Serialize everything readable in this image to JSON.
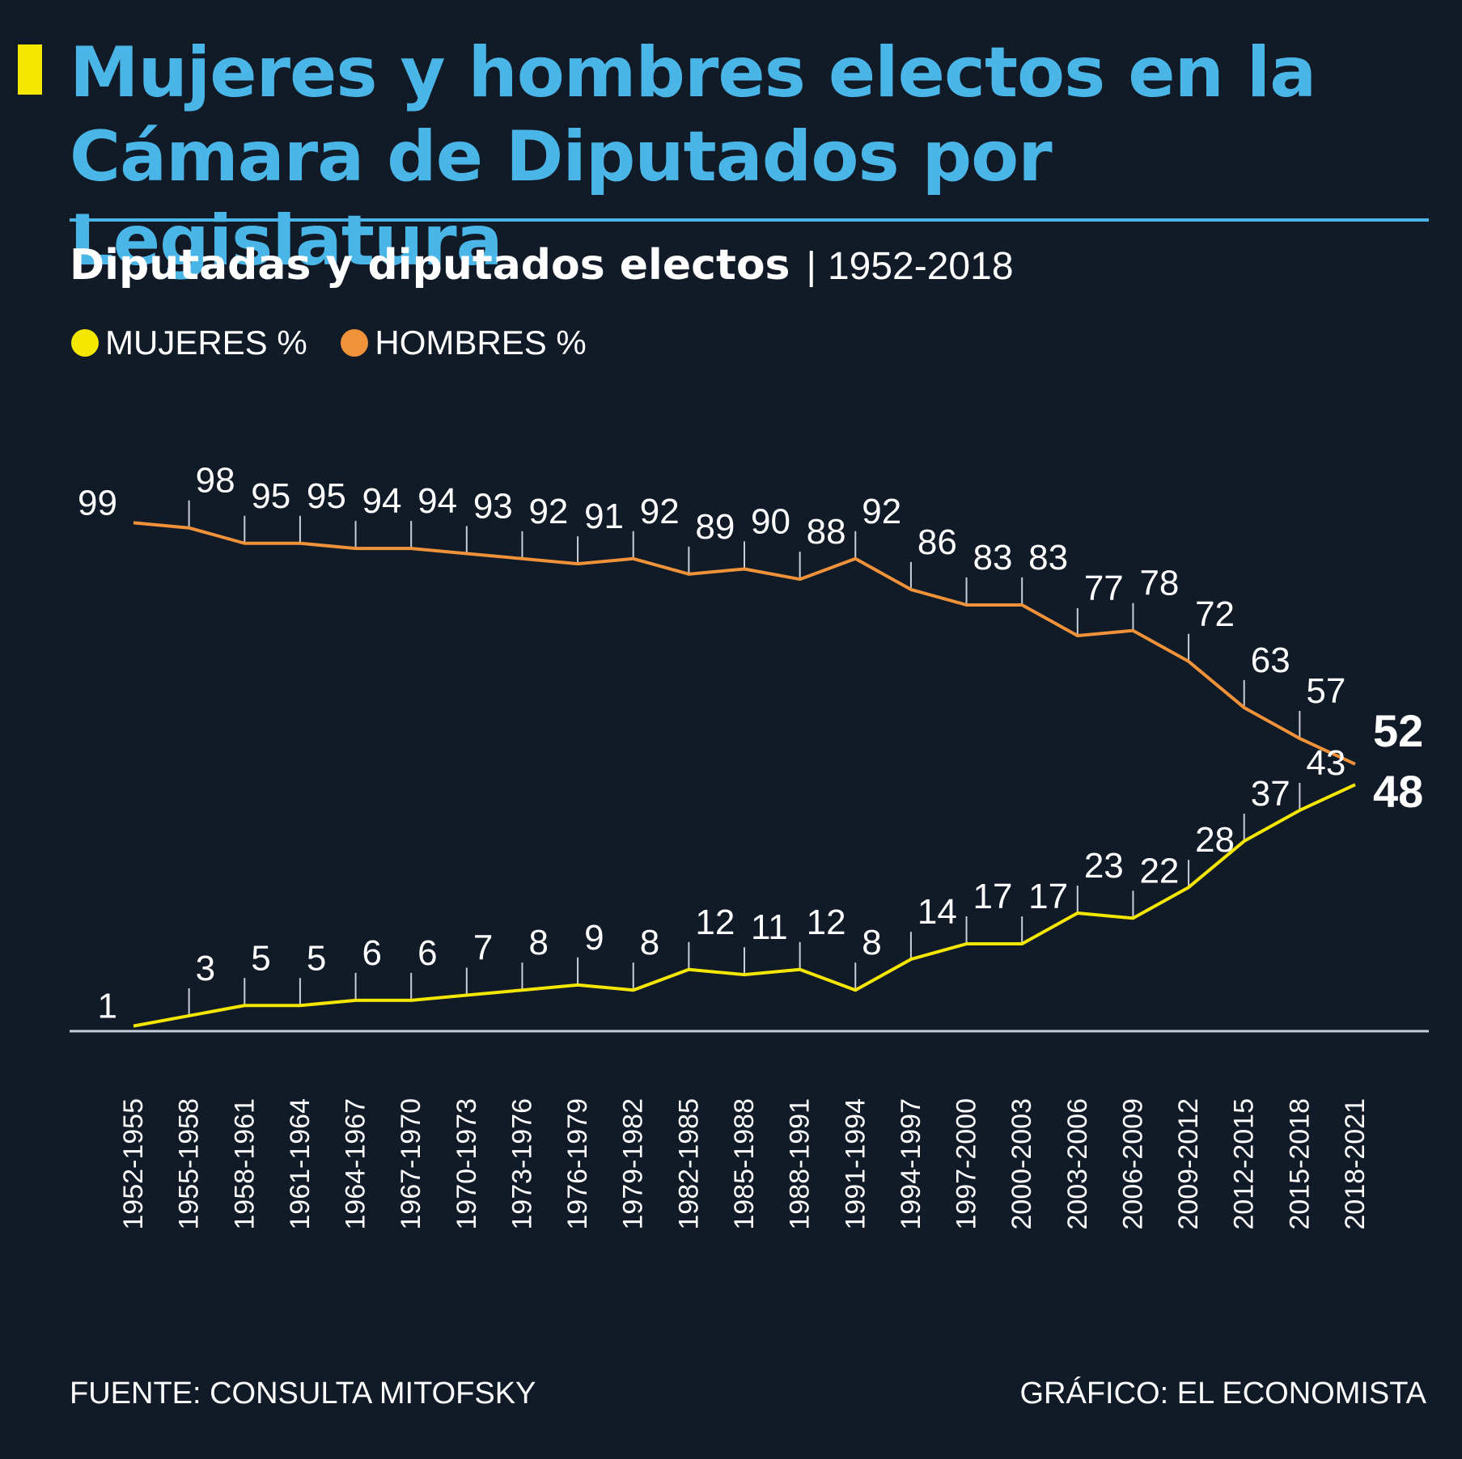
{
  "title": "Mujeres y hombres electos en la Cámara de Diputados por Legislatura",
  "subtitle": "Diputadas y diputados electos",
  "subtitle_separator": "|",
  "subtitle_range": "1952-2018",
  "legend": {
    "women": "MUJERES %",
    "men": "HOMBRES %"
  },
  "colors": {
    "background": "#111a27",
    "title": "#4ab6e8",
    "accent": "#f5e600",
    "women": "#f5e600",
    "men": "#f0923a",
    "axis": "#c9ced6",
    "text": "#ffffff"
  },
  "footer": {
    "source": "FUENTE: CONSULTA MITOFSKY",
    "credit": "GRÁFICO: EL ECONOMISTA"
  },
  "chart_data": {
    "type": "line",
    "ylim": [
      0,
      100
    ],
    "grid": false,
    "legend_position": "top-left",
    "categories": [
      "1952-1955",
      "1955-1958",
      "1958-1961",
      "1961-1964",
      "1964-1967",
      "1967-1970",
      "1970-1973",
      "1973-1976",
      "1976-1979",
      "1979-1982",
      "1982-1985",
      "1985-1988",
      "1988-1991",
      "1991-1994",
      "1994-1997",
      "1997-2000",
      "2000-2003",
      "2003-2006",
      "2006-2009",
      "2009-2012",
      "2012-2015",
      "2015-2018",
      "2018-2021"
    ],
    "series": [
      {
        "name": "HOMBRES %",
        "values": [
          99,
          98,
          95,
          95,
          94,
          94,
          93,
          92,
          91,
          92,
          89,
          90,
          88,
          92,
          86,
          83,
          83,
          77,
          78,
          72,
          63,
          57,
          52
        ]
      },
      {
        "name": "MUJERES %",
        "values": [
          1,
          3,
          5,
          5,
          6,
          6,
          7,
          8,
          9,
          8,
          12,
          11,
          12,
          8,
          14,
          17,
          17,
          23,
          22,
          28,
          37,
          43,
          48
        ]
      }
    ]
  }
}
